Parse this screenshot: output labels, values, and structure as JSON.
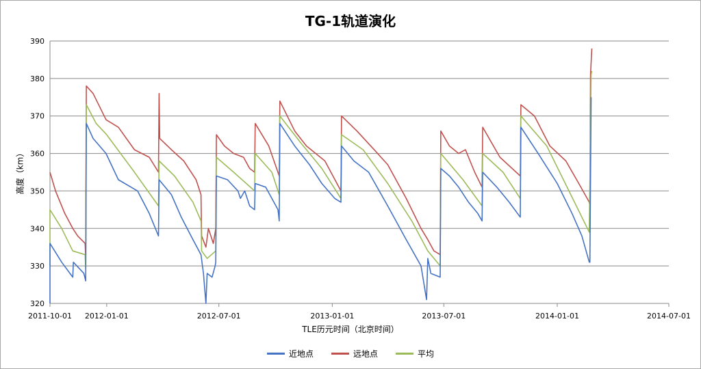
{
  "chart_data": {
    "type": "line",
    "title": "TG-1轨道演化",
    "xlabel": "TLE历元时间（北京时间）",
    "ylabel": "高度（km）",
    "ylim": [
      320,
      390
    ],
    "xlim": [
      "2011-10-01",
      "2014-07-01"
    ],
    "yticks": [
      320,
      330,
      340,
      350,
      360,
      370,
      380,
      390
    ],
    "xticks": [
      "2011-10-01",
      "2012-01-01",
      "2012-07-01",
      "2013-01-01",
      "2013-07-01",
      "2014-01-01",
      "2014-07-01"
    ],
    "grid": "horizontal",
    "legend": "bottom",
    "series": [
      {
        "name": "近地点",
        "color": "#4472c4",
        "points": [
          [
            "2011-10-01",
            320
          ],
          [
            "2011-10-01",
            336
          ],
          [
            "2011-10-20",
            331
          ],
          [
            "2011-11-07",
            327
          ],
          [
            "2011-11-08",
            331
          ],
          [
            "2011-11-25",
            328
          ],
          [
            "2011-11-28",
            326
          ],
          [
            "2011-11-29",
            368
          ],
          [
            "2011-12-10",
            364
          ],
          [
            "2011-12-31",
            360
          ],
          [
            "2012-01-20",
            353
          ],
          [
            "2012-02-20",
            350
          ],
          [
            "2012-03-10",
            344
          ],
          [
            "2012-03-25",
            338
          ],
          [
            "2012-03-26",
            353
          ],
          [
            "2012-04-15",
            349
          ],
          [
            "2012-05-01",
            343
          ],
          [
            "2012-05-20",
            337
          ],
          [
            "2012-06-02",
            333
          ],
          [
            "2012-06-06",
            328
          ],
          [
            "2012-06-10",
            320
          ],
          [
            "2012-06-12",
            328
          ],
          [
            "2012-06-20",
            327
          ],
          [
            "2012-06-25",
            330
          ],
          [
            "2012-06-26",
            331
          ],
          [
            "2012-06-27",
            354
          ],
          [
            "2012-07-15",
            353
          ],
          [
            "2012-08-01",
            350
          ],
          [
            "2012-08-05",
            348
          ],
          [
            "2012-08-12",
            350
          ],
          [
            "2012-08-20",
            346
          ],
          [
            "2012-08-28",
            345
          ],
          [
            "2012-08-29",
            352
          ],
          [
            "2012-09-15",
            351
          ],
          [
            "2012-10-05",
            345
          ],
          [
            "2012-10-07",
            342
          ],
          [
            "2012-10-08",
            368
          ],
          [
            "2012-11-01",
            362
          ],
          [
            "2012-11-25",
            357
          ],
          [
            "2012-12-15",
            352
          ],
          [
            "2013-01-05",
            348
          ],
          [
            "2013-01-15",
            347
          ],
          [
            "2013-01-16",
            362
          ],
          [
            "2013-02-05",
            358
          ],
          [
            "2013-03-01",
            355
          ],
          [
            "2013-04-01",
            346
          ],
          [
            "2013-05-01",
            337
          ],
          [
            "2013-05-25",
            330
          ],
          [
            "2013-06-03",
            321
          ],
          [
            "2013-06-05",
            332
          ],
          [
            "2013-06-10",
            328
          ],
          [
            "2013-06-25",
            327
          ],
          [
            "2013-06-26",
            356
          ],
          [
            "2013-07-10",
            354
          ],
          [
            "2013-07-25",
            351
          ],
          [
            "2013-08-10",
            347
          ],
          [
            "2013-08-25",
            344
          ],
          [
            "2013-09-01",
            342
          ],
          [
            "2013-09-02",
            355
          ],
          [
            "2013-09-25",
            351
          ],
          [
            "2013-10-15",
            347
          ],
          [
            "2013-11-02",
            343
          ],
          [
            "2013-11-03",
            367
          ],
          [
            "2013-12-01",
            360
          ],
          [
            "2014-01-01",
            352
          ],
          [
            "2014-01-25",
            344
          ],
          [
            "2014-02-10",
            338
          ],
          [
            "2014-02-22",
            331
          ],
          [
            "2014-02-23",
            331
          ],
          [
            "2014-02-25",
            375
          ]
        ]
      },
      {
        "name": "远地点",
        "color": "#c0504d",
        "points": [
          [
            "2011-10-01",
            355
          ],
          [
            "2011-10-10",
            350
          ],
          [
            "2011-10-25",
            344
          ],
          [
            "2011-11-07",
            340
          ],
          [
            "2011-11-15",
            338
          ],
          [
            "2011-11-27",
            336
          ],
          [
            "2011-11-28",
            332
          ],
          [
            "2011-11-29",
            378
          ],
          [
            "2011-12-10",
            376
          ],
          [
            "2011-12-31",
            369
          ],
          [
            "2012-01-20",
            367
          ],
          [
            "2012-02-15",
            361
          ],
          [
            "2012-03-10",
            359
          ],
          [
            "2012-03-25",
            355
          ],
          [
            "2012-03-26",
            376
          ],
          [
            "2012-03-27",
            364
          ],
          [
            "2012-04-15",
            361
          ],
          [
            "2012-05-05",
            358
          ],
          [
            "2012-05-25",
            353
          ],
          [
            "2012-06-02",
            349
          ],
          [
            "2012-06-03",
            338
          ],
          [
            "2012-06-10",
            335
          ],
          [
            "2012-06-14",
            340
          ],
          [
            "2012-06-22",
            336
          ],
          [
            "2012-06-26",
            340
          ],
          [
            "2012-06-27",
            365
          ],
          [
            "2012-07-10",
            362
          ],
          [
            "2012-07-25",
            360
          ],
          [
            "2012-08-10",
            359
          ],
          [
            "2012-08-20",
            356
          ],
          [
            "2012-08-28",
            355
          ],
          [
            "2012-08-29",
            368
          ],
          [
            "2012-09-20",
            362
          ],
          [
            "2012-10-07",
            354
          ],
          [
            "2012-10-08",
            374
          ],
          [
            "2012-11-01",
            366
          ],
          [
            "2012-11-20",
            362
          ],
          [
            "2012-12-20",
            358
          ],
          [
            "2013-01-15",
            350
          ],
          [
            "2013-01-16",
            370
          ],
          [
            "2013-02-10",
            366
          ],
          [
            "2013-03-10",
            361
          ],
          [
            "2013-04-01",
            357
          ],
          [
            "2013-05-01",
            348
          ],
          [
            "2013-05-25",
            340
          ],
          [
            "2013-06-05",
            337
          ],
          [
            "2013-06-15",
            334
          ],
          [
            "2013-06-25",
            333
          ],
          [
            "2013-06-26",
            366
          ],
          [
            "2013-07-10",
            362
          ],
          [
            "2013-07-25",
            360
          ],
          [
            "2013-08-05",
            361
          ],
          [
            "2013-08-20",
            355
          ],
          [
            "2013-09-01",
            351
          ],
          [
            "2013-09-02",
            367
          ],
          [
            "2013-09-30",
            359
          ],
          [
            "2013-11-02",
            354
          ],
          [
            "2013-11-03",
            373
          ],
          [
            "2013-11-25",
            370
          ],
          [
            "2013-12-20",
            362
          ],
          [
            "2014-01-15",
            358
          ],
          [
            "2014-02-05",
            352
          ],
          [
            "2014-02-22",
            347
          ],
          [
            "2014-02-23",
            346
          ],
          [
            "2014-02-24",
            381
          ],
          [
            "2014-02-26",
            388
          ]
        ]
      },
      {
        "name": "平均",
        "color": "#9bbb59",
        "points": [
          [
            "2011-10-01",
            330
          ],
          [
            "2011-10-01",
            345
          ],
          [
            "2011-10-20",
            340
          ],
          [
            "2011-11-07",
            334
          ],
          [
            "2011-11-27",
            333
          ],
          [
            "2011-11-28",
            329
          ],
          [
            "2011-11-29",
            373
          ],
          [
            "2011-12-15",
            368
          ],
          [
            "2012-01-01",
            365
          ],
          [
            "2012-02-15",
            355
          ],
          [
            "2012-03-25",
            346
          ],
          [
            "2012-03-26",
            358
          ],
          [
            "2012-04-20",
            354
          ],
          [
            "2012-05-20",
            347
          ],
          [
            "2012-06-02",
            342
          ],
          [
            "2012-06-03",
            334
          ],
          [
            "2012-06-12",
            332
          ],
          [
            "2012-06-26",
            334
          ],
          [
            "2012-06-27",
            359
          ],
          [
            "2012-07-25",
            355
          ],
          [
            "2012-08-28",
            350
          ],
          [
            "2012-08-29",
            360
          ],
          [
            "2012-09-25",
            355
          ],
          [
            "2012-10-07",
            349
          ],
          [
            "2012-10-08",
            370
          ],
          [
            "2012-11-10",
            363
          ],
          [
            "2012-12-15",
            356
          ],
          [
            "2013-01-15",
            348
          ],
          [
            "2013-01-16",
            365
          ],
          [
            "2013-02-20",
            361
          ],
          [
            "2013-04-01",
            352
          ],
          [
            "2013-05-10",
            342
          ],
          [
            "2013-06-05",
            334
          ],
          [
            "2013-06-25",
            330
          ],
          [
            "2013-06-26",
            360
          ],
          [
            "2013-08-01",
            353
          ],
          [
            "2013-09-01",
            346
          ],
          [
            "2013-09-02",
            360
          ],
          [
            "2013-10-05",
            355
          ],
          [
            "2013-11-02",
            348
          ],
          [
            "2013-11-03",
            370
          ],
          [
            "2013-12-15",
            362
          ],
          [
            "2014-01-20",
            350
          ],
          [
            "2014-02-22",
            339
          ],
          [
            "2014-02-25",
            381
          ],
          [
            "2014-02-26",
            382
          ]
        ]
      }
    ]
  }
}
